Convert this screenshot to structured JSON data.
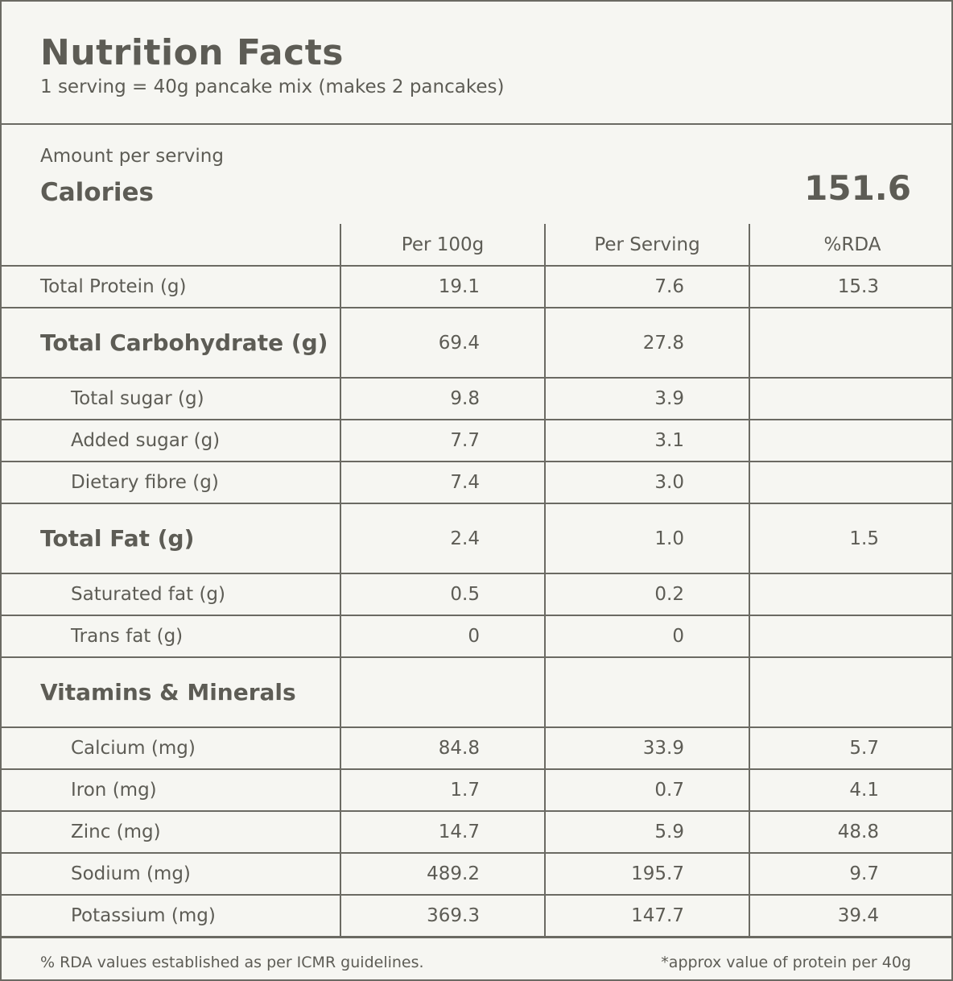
{
  "header": {
    "title": "Nutrition Facts",
    "serving": "1 serving = 40g pancake mix (makes 2 pancakes)"
  },
  "calories": {
    "amount_label": "Amount per serving",
    "label": "Calories",
    "value": "151.6"
  },
  "table": {
    "columns": [
      "",
      "Per 100g",
      "Per Serving",
      "%RDA"
    ],
    "rows": [
      {
        "label": "Total Protein (g)",
        "per100": "19.1",
        "perServing": "7.6",
        "rda": "15.3"
      },
      {
        "label": "Total Carbohydrate (g)",
        "per100": "69.4",
        "perServing": "27.8",
        "rda": ""
      },
      {
        "label": "Total sugar (g)",
        "per100": "9.8",
        "perServing": "3.9",
        "rda": ""
      },
      {
        "label": "Added sugar (g)",
        "per100": "7.7",
        "perServing": "3.1",
        "rda": ""
      },
      {
        "label": "Dietary fibre (g)",
        "per100": "7.4",
        "perServing": "3.0",
        "rda": ""
      },
      {
        "label": "Total Fat (g)",
        "per100": "2.4",
        "perServing": "1.0",
        "rda": "1.5"
      },
      {
        "label": "Saturated fat (g)",
        "per100": "0.5",
        "perServing": "0.2",
        "rda": ""
      },
      {
        "label": "Trans fat (g)",
        "per100": "0",
        "perServing": "0",
        "rda": ""
      },
      {
        "label": "Vitamins & Minerals",
        "per100": "",
        "perServing": "",
        "rda": ""
      },
      {
        "label": "Calcium (mg)",
        "per100": "84.8",
        "perServing": "33.9",
        "rda": "5.7"
      },
      {
        "label": "Iron (mg)",
        "per100": "1.7",
        "perServing": "0.7",
        "rda": "4.1"
      },
      {
        "label": "Zinc (mg)",
        "per100": "14.7",
        "perServing": "5.9",
        "rda": "48.8"
      },
      {
        "label": "Sodium (mg)",
        "per100": "489.2",
        "perServing": "195.7",
        "rda": "9.7"
      },
      {
        "label": "Potassium (mg)",
        "per100": "369.3",
        "perServing": "147.7",
        "rda": "39.4"
      }
    ]
  },
  "footer": {
    "left": "% RDA values established as per ICMR guidelines.",
    "right": "*approx value of protein per 40g"
  },
  "colors": {
    "background": "#f6f6f2",
    "text": "#5d5c55",
    "rule": "#6b6a63"
  }
}
